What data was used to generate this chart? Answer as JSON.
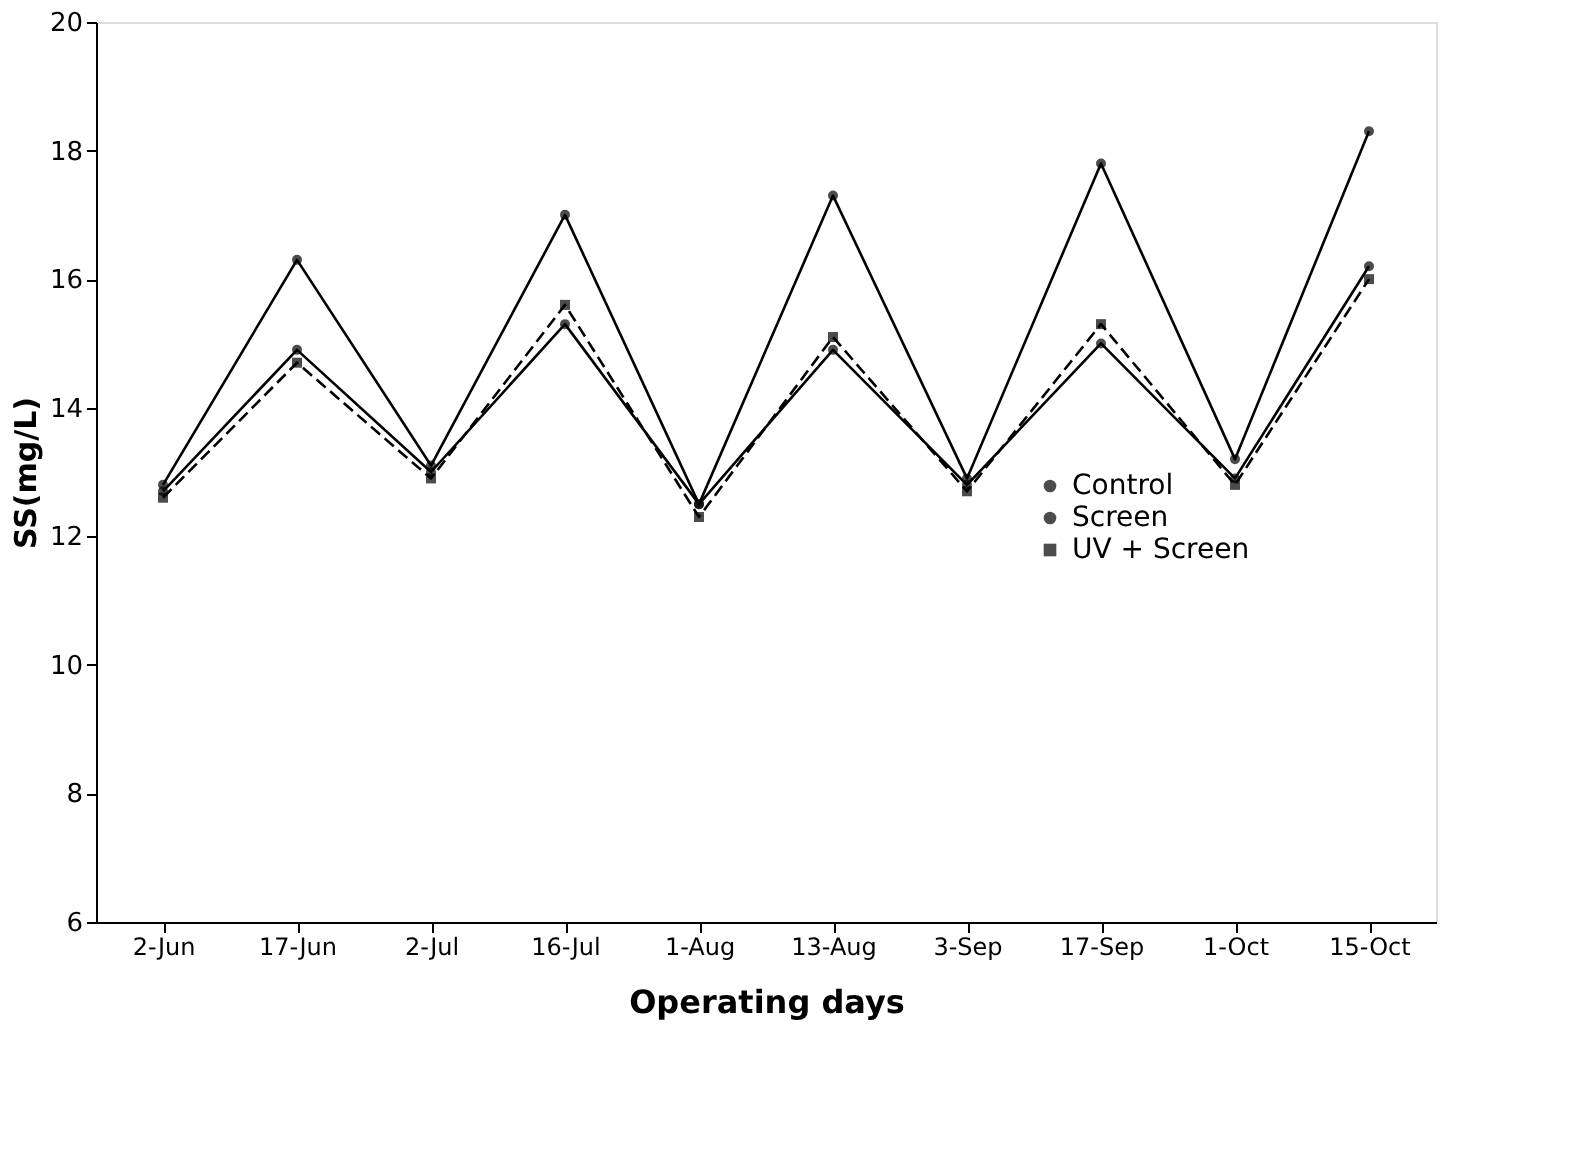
{
  "chart_data": {
    "type": "line",
    "xlabel": "Operating days",
    "ylabel": "SS(mg/L)",
    "categories": [
      "2-Jun",
      "17-Jun",
      "2-Jul",
      "16-Jul",
      "1-Aug",
      "13-Aug",
      "3-Sep",
      "17-Sep",
      "1-Oct",
      "15-Oct"
    ],
    "series": [
      {
        "name": "Control",
        "color": "#000000",
        "marker": "circle",
        "line_style": "solid",
        "values": [
          12.8,
          16.3,
          13.1,
          17.0,
          12.5,
          17.3,
          12.9,
          17.8,
          13.2,
          18.3
        ]
      },
      {
        "name": "Screen",
        "color": "#000000",
        "marker": "circle",
        "line_style": "solid",
        "values": [
          12.7,
          14.9,
          13.0,
          15.3,
          12.5,
          14.9,
          12.8,
          15.0,
          12.9,
          16.2
        ]
      },
      {
        "name": "UV + Screen",
        "color": "#000000",
        "marker": "square",
        "line_style": "dashed",
        "values": [
          12.6,
          14.7,
          12.9,
          15.6,
          12.3,
          15.1,
          12.7,
          15.3,
          12.8,
          16.0
        ]
      }
    ],
    "ylim": [
      6,
      20
    ],
    "yticks": [
      6,
      8,
      10,
      12,
      14,
      16,
      18,
      20
    ],
    "grid": false,
    "legend": "right"
  }
}
